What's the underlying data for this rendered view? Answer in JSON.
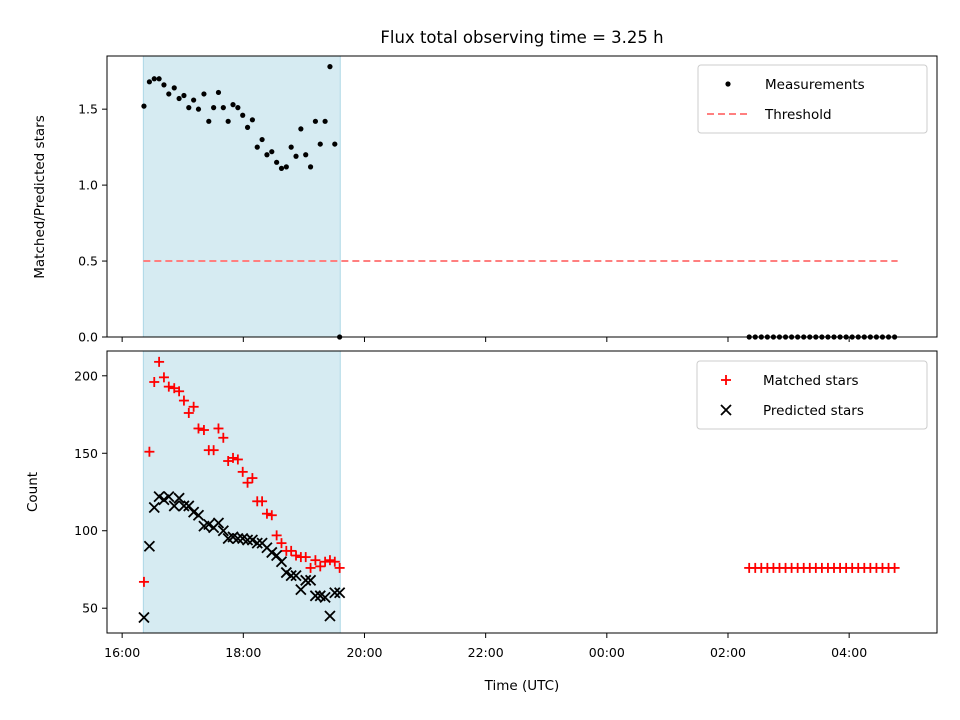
{
  "chart_data": {
    "title": "Flux total observing time = 3.25 h",
    "xlabel": "Time (UTC)",
    "x_unit": "hours since 16:00 UTC",
    "xlim": [
      -0.25,
      13.45
    ],
    "x_ticks": [
      {
        "value": 0,
        "label": "16:00"
      },
      {
        "value": 2,
        "label": "18:00"
      },
      {
        "value": 4,
        "label": "20:00"
      },
      {
        "value": 6,
        "label": "22:00"
      },
      {
        "value": 8,
        "label": "00:00"
      },
      {
        "value": 10,
        "label": "02:00"
      },
      {
        "value": 12,
        "label": "04:00"
      }
    ],
    "highlight_span": {
      "x0": 0.35,
      "x1": 3.6,
      "color": "#add8e6"
    },
    "panels": [
      {
        "type": "scatter",
        "ylabel": "Matched/Predicted stars",
        "ylim": [
          0,
          1.85
        ],
        "y_ticks": [
          {
            "value": 0,
            "label": "0.0"
          },
          {
            "value": 0.5,
            "label": "0.5"
          },
          {
            "value": 1,
            "label": "1.0"
          },
          {
            "value": 1.5,
            "label": "1.5"
          }
        ],
        "legend": [
          {
            "label": "Measurements",
            "marker": "dot",
            "color": "#000000"
          },
          {
            "label": "Threshold",
            "marker": "dashed-line",
            "color": "#ff7f7f"
          }
        ],
        "threshold": {
          "value": 0.5,
          "x0": 0.35,
          "x1": 12.8,
          "color": "#ff7f7f"
        },
        "measurements": {
          "x": [
            0.36,
            0.45,
            0.53,
            0.61,
            0.69,
            0.77,
            0.86,
            0.94,
            1.02,
            1.1,
            1.18,
            1.26,
            1.35,
            1.43,
            1.51,
            1.59,
            1.67,
            1.75,
            1.83,
            1.91,
            1.99,
            2.07,
            2.15,
            2.23,
            2.31,
            2.39,
            2.47,
            2.55,
            2.63,
            2.71,
            2.79,
            2.87,
            2.95,
            3.03,
            3.11,
            3.19,
            3.27,
            3.35,
            3.43,
            3.51,
            3.59,
            10.35,
            10.45,
            10.55,
            10.65,
            10.75,
            10.85,
            10.95,
            11.05,
            11.15,
            11.25,
            11.35,
            11.45,
            11.55,
            11.65,
            11.75,
            11.85,
            11.95,
            12.05,
            12.15,
            12.25,
            12.35,
            12.45,
            12.55,
            12.65,
            12.75
          ],
          "y": [
            1.52,
            1.68,
            1.7,
            1.7,
            1.66,
            1.6,
            1.64,
            1.57,
            1.59,
            1.51,
            1.56,
            1.5,
            1.6,
            1.42,
            1.51,
            1.61,
            1.51,
            1.42,
            1.53,
            1.51,
            1.46,
            1.38,
            1.43,
            1.25,
            1.3,
            1.2,
            1.22,
            1.15,
            1.11,
            1.12,
            1.25,
            1.19,
            1.37,
            1.2,
            1.12,
            1.42,
            1.27,
            1.42,
            1.78,
            1.27,
            0.0,
            0.0,
            0.0,
            0.0,
            0.0,
            0.0,
            0.0,
            0.0,
            0.0,
            0.0,
            0.0,
            0.0,
            0.0,
            0.0,
            0.0,
            0.0,
            0.0,
            0.0,
            0.0,
            0.0,
            0.0,
            0.0,
            0.0,
            0.0,
            0.0,
            0.0
          ],
          "color": "#000000"
        }
      },
      {
        "type": "scatter",
        "ylabel": "Count",
        "ylim": [
          34,
          216
        ],
        "y_ticks": [
          {
            "value": 50,
            "label": "50"
          },
          {
            "value": 100,
            "label": "100"
          },
          {
            "value": 150,
            "label": "150"
          },
          {
            "value": 200,
            "label": "200"
          }
        ],
        "legend": [
          {
            "label": "Matched stars",
            "marker": "plus",
            "color": "#ff0000"
          },
          {
            "label": "Predicted stars",
            "marker": "x",
            "color": "#000000"
          }
        ],
        "series": [
          {
            "name": "Matched stars",
            "marker": "plus",
            "color": "#ff0000",
            "x": [
              0.36,
              0.45,
              0.53,
              0.61,
              0.69,
              0.77,
              0.86,
              0.94,
              1.02,
              1.1,
              1.18,
              1.26,
              1.35,
              1.43,
              1.51,
              1.59,
              1.67,
              1.75,
              1.83,
              1.91,
              1.99,
              2.07,
              2.15,
              2.23,
              2.31,
              2.39,
              2.47,
              2.55,
              2.63,
              2.71,
              2.79,
              2.87,
              2.95,
              3.03,
              3.11,
              3.19,
              3.27,
              3.35,
              3.43,
              3.51,
              3.59,
              10.35,
              10.45,
              10.55,
              10.65,
              10.75,
              10.85,
              10.95,
              11.05,
              11.15,
              11.25,
              11.35,
              11.45,
              11.55,
              11.65,
              11.75,
              11.85,
              11.95,
              12.05,
              12.15,
              12.25,
              12.35,
              12.45,
              12.55,
              12.65,
              12.75
            ],
            "y": [
              67,
              151,
              196,
              209,
              199,
              193,
              192,
              190,
              184,
              176,
              180,
              166,
              165,
              152,
              152,
              166,
              160,
              145,
              147,
              146,
              138,
              131,
              134,
              119,
              119,
              111,
              110,
              97,
              92,
              87,
              87,
              84,
              83,
              83,
              76,
              81,
              77,
              80,
              81,
              80,
              76,
              76,
              76,
              76,
              76,
              76,
              76,
              76,
              76,
              76,
              76,
              76,
              76,
              76,
              76,
              76,
              76,
              76,
              76,
              76,
              76,
              76,
              76,
              76,
              76,
              76
            ]
          },
          {
            "name": "Predicted stars",
            "marker": "x",
            "color": "#000000",
            "x": [
              0.36,
              0.45,
              0.53,
              0.61,
              0.69,
              0.77,
              0.86,
              0.94,
              1.02,
              1.1,
              1.18,
              1.26,
              1.35,
              1.43,
              1.51,
              1.59,
              1.67,
              1.75,
              1.83,
              1.91,
              1.99,
              2.07,
              2.15,
              2.23,
              2.31,
              2.39,
              2.47,
              2.55,
              2.63,
              2.71,
              2.79,
              2.87,
              2.95,
              3.03,
              3.11,
              3.19,
              3.27,
              3.35,
              3.43,
              3.51,
              3.59
            ],
            "y": [
              44,
              90,
              115,
              122,
              120,
              122,
              116,
              121,
              116,
              116,
              112,
              110,
              103,
              104,
              102,
              105,
              100,
              95,
              96,
              95,
              95,
              94,
              94,
              92,
              92,
              89,
              86,
              84,
              80,
              73,
              71,
              71,
              62,
              68,
              68,
              58,
              58,
              57,
              45,
              60,
              60
            ]
          }
        ]
      }
    ]
  }
}
